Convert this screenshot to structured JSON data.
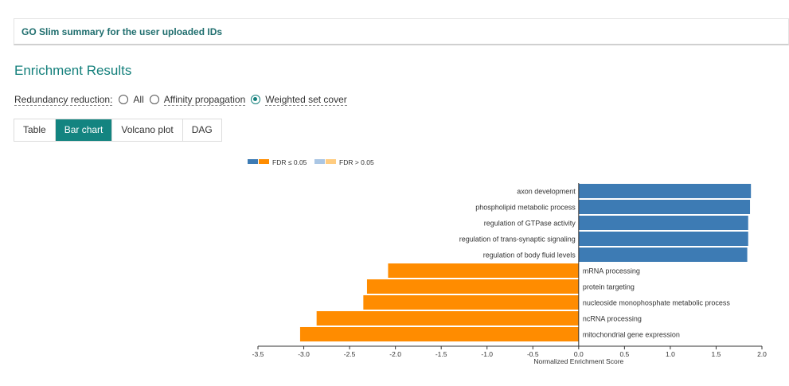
{
  "summary": {
    "title": "GO Slim summary for the user uploaded IDs"
  },
  "results": {
    "title": "Enrichment Results"
  },
  "redundancy": {
    "label": "Redundancy reduction:",
    "options": [
      {
        "label": "All",
        "checked": false
      },
      {
        "label": "Affinity propagation",
        "checked": false
      },
      {
        "label": "Weighted set cover",
        "checked": true
      }
    ]
  },
  "tabs": [
    {
      "label": "Table",
      "active": false
    },
    {
      "label": "Bar chart",
      "active": true
    },
    {
      "label": "Volcano plot",
      "active": false
    },
    {
      "label": "DAG",
      "active": false
    }
  ],
  "chart_data": {
    "type": "bar",
    "orientation": "horizontal",
    "xlabel": "Normalized Enrichment Score",
    "xlim": [
      -3.5,
      2.0
    ],
    "xticks": [
      "-3.5",
      "-3.0",
      "-2.5",
      "-2.0",
      "-1.5",
      "-1.0",
      "-0.5",
      "0.0",
      "0.5",
      "1.0",
      "1.5",
      "2.0"
    ],
    "legend": {
      "placement": "top-left",
      "items": [
        {
          "label": "FDR ≤ 0.05",
          "colors": [
            "#3d7bb4",
            "#ff8c00"
          ]
        },
        {
          "label": "FDR > 0.05",
          "colors": [
            "#aac6e4",
            "#ffcc80"
          ]
        }
      ]
    },
    "colors": {
      "positive": "#3d7bb4",
      "negative": "#ff8c00"
    },
    "categories": [
      "axon development",
      "phospholipid metabolic process",
      "regulation of GTPase activity",
      "regulation of trans-synaptic signaling",
      "regulation of body fluid levels",
      "mRNA processing",
      "protein targeting",
      "nucleoside monophosphate metabolic process",
      "ncRNA processing",
      "mitochondrial gene expression"
    ],
    "values": [
      1.88,
      1.87,
      1.85,
      1.85,
      1.84,
      -2.08,
      -2.31,
      -2.35,
      -2.86,
      -3.04
    ]
  }
}
